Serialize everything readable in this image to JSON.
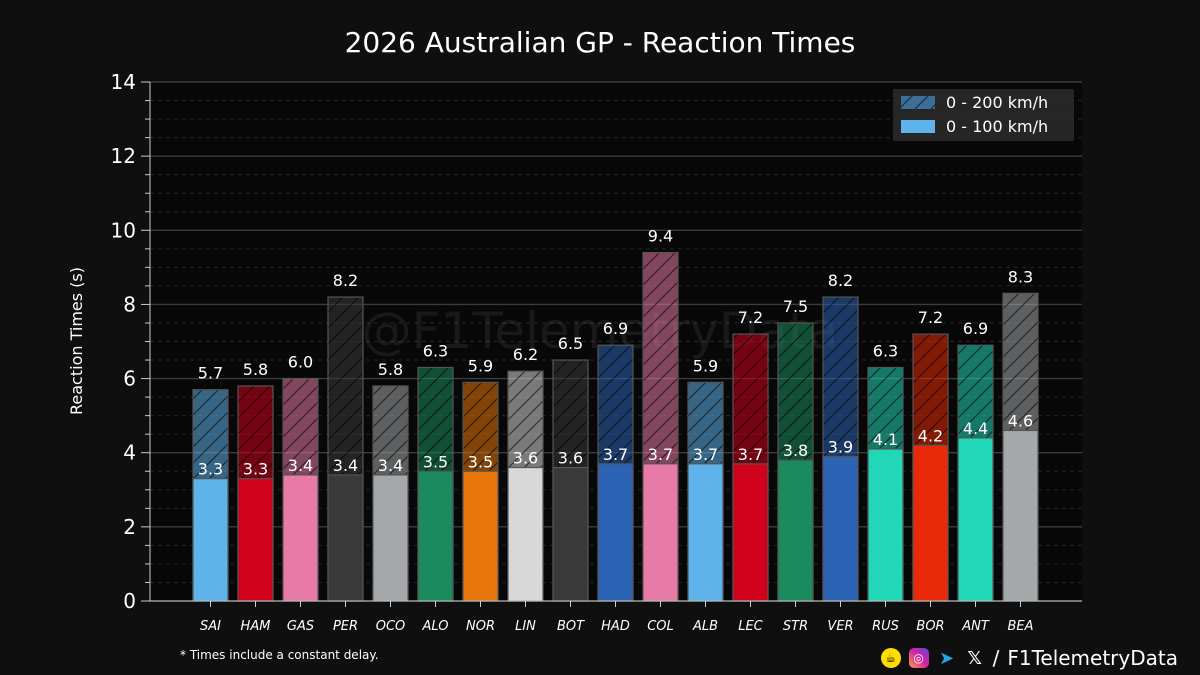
{
  "title": "2026 Australian GP - Reaction Times",
  "watermark": "@F1TelemetryData",
  "footnote": "* Times include a constant delay.",
  "credits": {
    "handle": "F1TelemetryData",
    "separator": "/",
    "icons": [
      "buymeacoffee-icon",
      "instagram-icon",
      "telegram-icon",
      "x-icon"
    ]
  },
  "colors": {
    "background": "#0f0f0f",
    "plot_background": "#080808",
    "grid": "#3a3a3a",
    "text": "#ffffff"
  },
  "chart_data": {
    "type": "bar",
    "ylabel": "Reaction Times (s)",
    "xlabel": "",
    "ylim": [
      0,
      14
    ],
    "yticks": [
      0,
      2,
      4,
      6,
      8,
      10,
      12,
      14
    ],
    "grid": true,
    "legend_position": "top-right",
    "categories": [
      "SAI",
      "HAM",
      "GAS",
      "PER",
      "OCO",
      "ALO",
      "NOR",
      "LIN",
      "BOT",
      "HAD",
      "COL",
      "ALB",
      "LEC",
      "STR",
      "VER",
      "RUS",
      "BOR",
      "ANT",
      "BEA"
    ],
    "bar_colors": [
      "#5eb3ea",
      "#d0021b",
      "#e87aa8",
      "#3a3a3a",
      "#a4a8ab",
      "#1b8a5e",
      "#e8770c",
      "#d8d8d8",
      "#3a3a3a",
      "#2d63b5",
      "#e87aa8",
      "#5eb3ea",
      "#d0021b",
      "#1b8a5e",
      "#2d63b5",
      "#22d7b8",
      "#e82a0a",
      "#22d7b8",
      "#a4a8ab"
    ],
    "series": [
      {
        "name": "0 - 200 km/h",
        "pattern": "hatched",
        "values": [
          5.7,
          5.8,
          6.0,
          8.2,
          5.8,
          6.3,
          5.9,
          6.2,
          6.5,
          6.9,
          9.4,
          5.9,
          7.2,
          7.5,
          8.2,
          6.3,
          7.2,
          6.9,
          8.3
        ],
        "labels": [
          "5.7",
          "5.8",
          "6.0",
          "8.2",
          "5.8",
          "6.3",
          "5.9",
          "6.2",
          "6.5",
          "6.9",
          "9.4",
          "5.9",
          "7.2",
          "7.5",
          "8.2",
          "6.3",
          "7.2",
          "6.9",
          "8.3"
        ]
      },
      {
        "name": "0 - 100 km/h",
        "pattern": "solid",
        "values": [
          3.3,
          3.3,
          3.4,
          3.4,
          3.4,
          3.5,
          3.5,
          3.6,
          3.6,
          3.7,
          3.7,
          3.7,
          3.7,
          3.8,
          3.9,
          4.1,
          4.2,
          4.4,
          4.6
        ],
        "labels": [
          "3.3",
          "3.3",
          "3.4",
          "3.4",
          "3.4",
          "3.5",
          "3.5",
          "3.6",
          "3.6",
          "3.7",
          "3.7",
          "3.7",
          "3.7",
          "3.8",
          "3.9",
          "4.1",
          "4.2",
          "4.4",
          "4.6"
        ]
      }
    ]
  }
}
